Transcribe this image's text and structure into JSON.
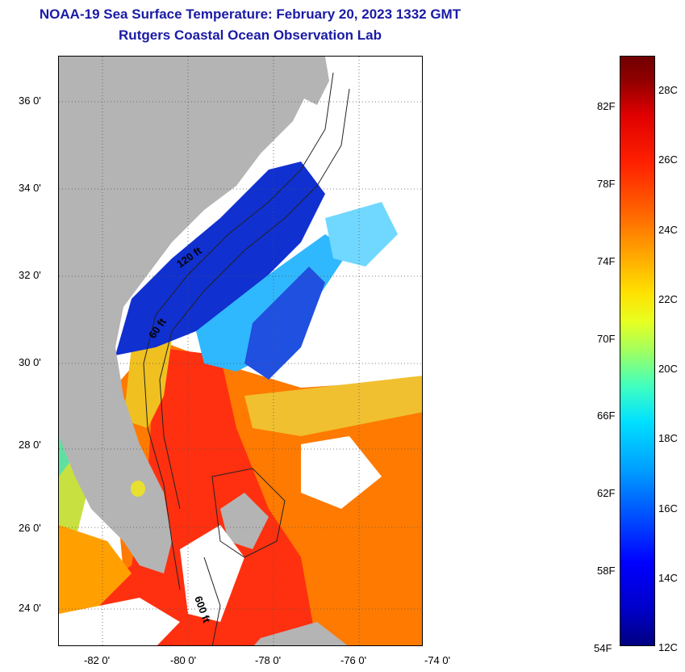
{
  "title": "NOAA-19 Sea Surface Temperature:  February 20, 2023 1332 GMT",
  "subtitle": "Rutgers Coastal Ocean Observation Lab",
  "lat_labels": [
    "36 0'",
    "34 0'",
    "32 0'",
    "30 0'",
    "28 0'",
    "26 0'",
    "24 0'"
  ],
  "lon_labels": [
    "-82 0'",
    "-80 0'",
    "-78 0'",
    "-76 0'",
    "-74 0'"
  ],
  "contour_labels": [
    "120 ft",
    "60 ft",
    "600 ft"
  ],
  "colorbar": {
    "fahrenheit": [
      "82F",
      "78F",
      "74F",
      "70F",
      "66F",
      "62F",
      "58F",
      "54F"
    ],
    "celsius": [
      "28C",
      "26C",
      "24C",
      "22C",
      "20C",
      "18C",
      "16C",
      "14C",
      "12C"
    ]
  },
  "colors": {
    "land": "#b4b4b4",
    "cloud": "#ffffff",
    "cold": "#1030d0",
    "cool": "#30b8ff",
    "mild": "#e8e030",
    "warm": "#ff7000",
    "hot": "#ff2a10",
    "title": "#1a1aa6"
  }
}
